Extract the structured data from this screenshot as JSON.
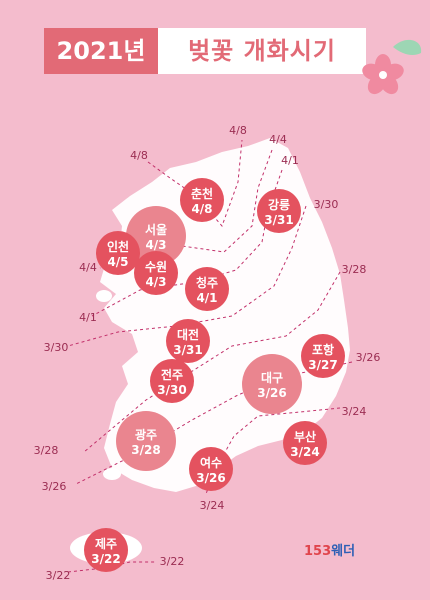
{
  "title": {
    "year": "2021년",
    "rest": "벚꽃 개화시기"
  },
  "brand": {
    "part1": "153",
    "part2": "웨더"
  },
  "colors": {
    "background": "#f4bccd",
    "accent": "#e26a76",
    "land": "#ffffff",
    "city_circle": "#e4525f",
    "city_circle_large": "#ea858f",
    "isoline": "#c2306a"
  },
  "cities": [
    {
      "name": "춘천",
      "date": "4/8"
    },
    {
      "name": "강릉",
      "date": "3/31"
    },
    {
      "name": "서울",
      "date": "4/3"
    },
    {
      "name": "인천",
      "date": "4/5"
    },
    {
      "name": "수원",
      "date": "4/3"
    },
    {
      "name": "청주",
      "date": "4/1"
    },
    {
      "name": "대전",
      "date": "3/31"
    },
    {
      "name": "포항",
      "date": "3/27"
    },
    {
      "name": "전주",
      "date": "3/30"
    },
    {
      "name": "대구",
      "date": "3/26"
    },
    {
      "name": "광주",
      "date": "3/28"
    },
    {
      "name": "부산",
      "date": "3/24"
    },
    {
      "name": "여수",
      "date": "3/26"
    },
    {
      "name": "제주",
      "date": "3/22"
    }
  ],
  "isoline_labels": [
    "4/8",
    "4/4",
    "4/8",
    "4/1",
    "3/30",
    "3/28",
    "4/4",
    "4/1",
    "3/30",
    "3/26",
    "3/24",
    "3/28",
    "3/26",
    "3/24",
    "3/22",
    "3/22"
  ]
}
